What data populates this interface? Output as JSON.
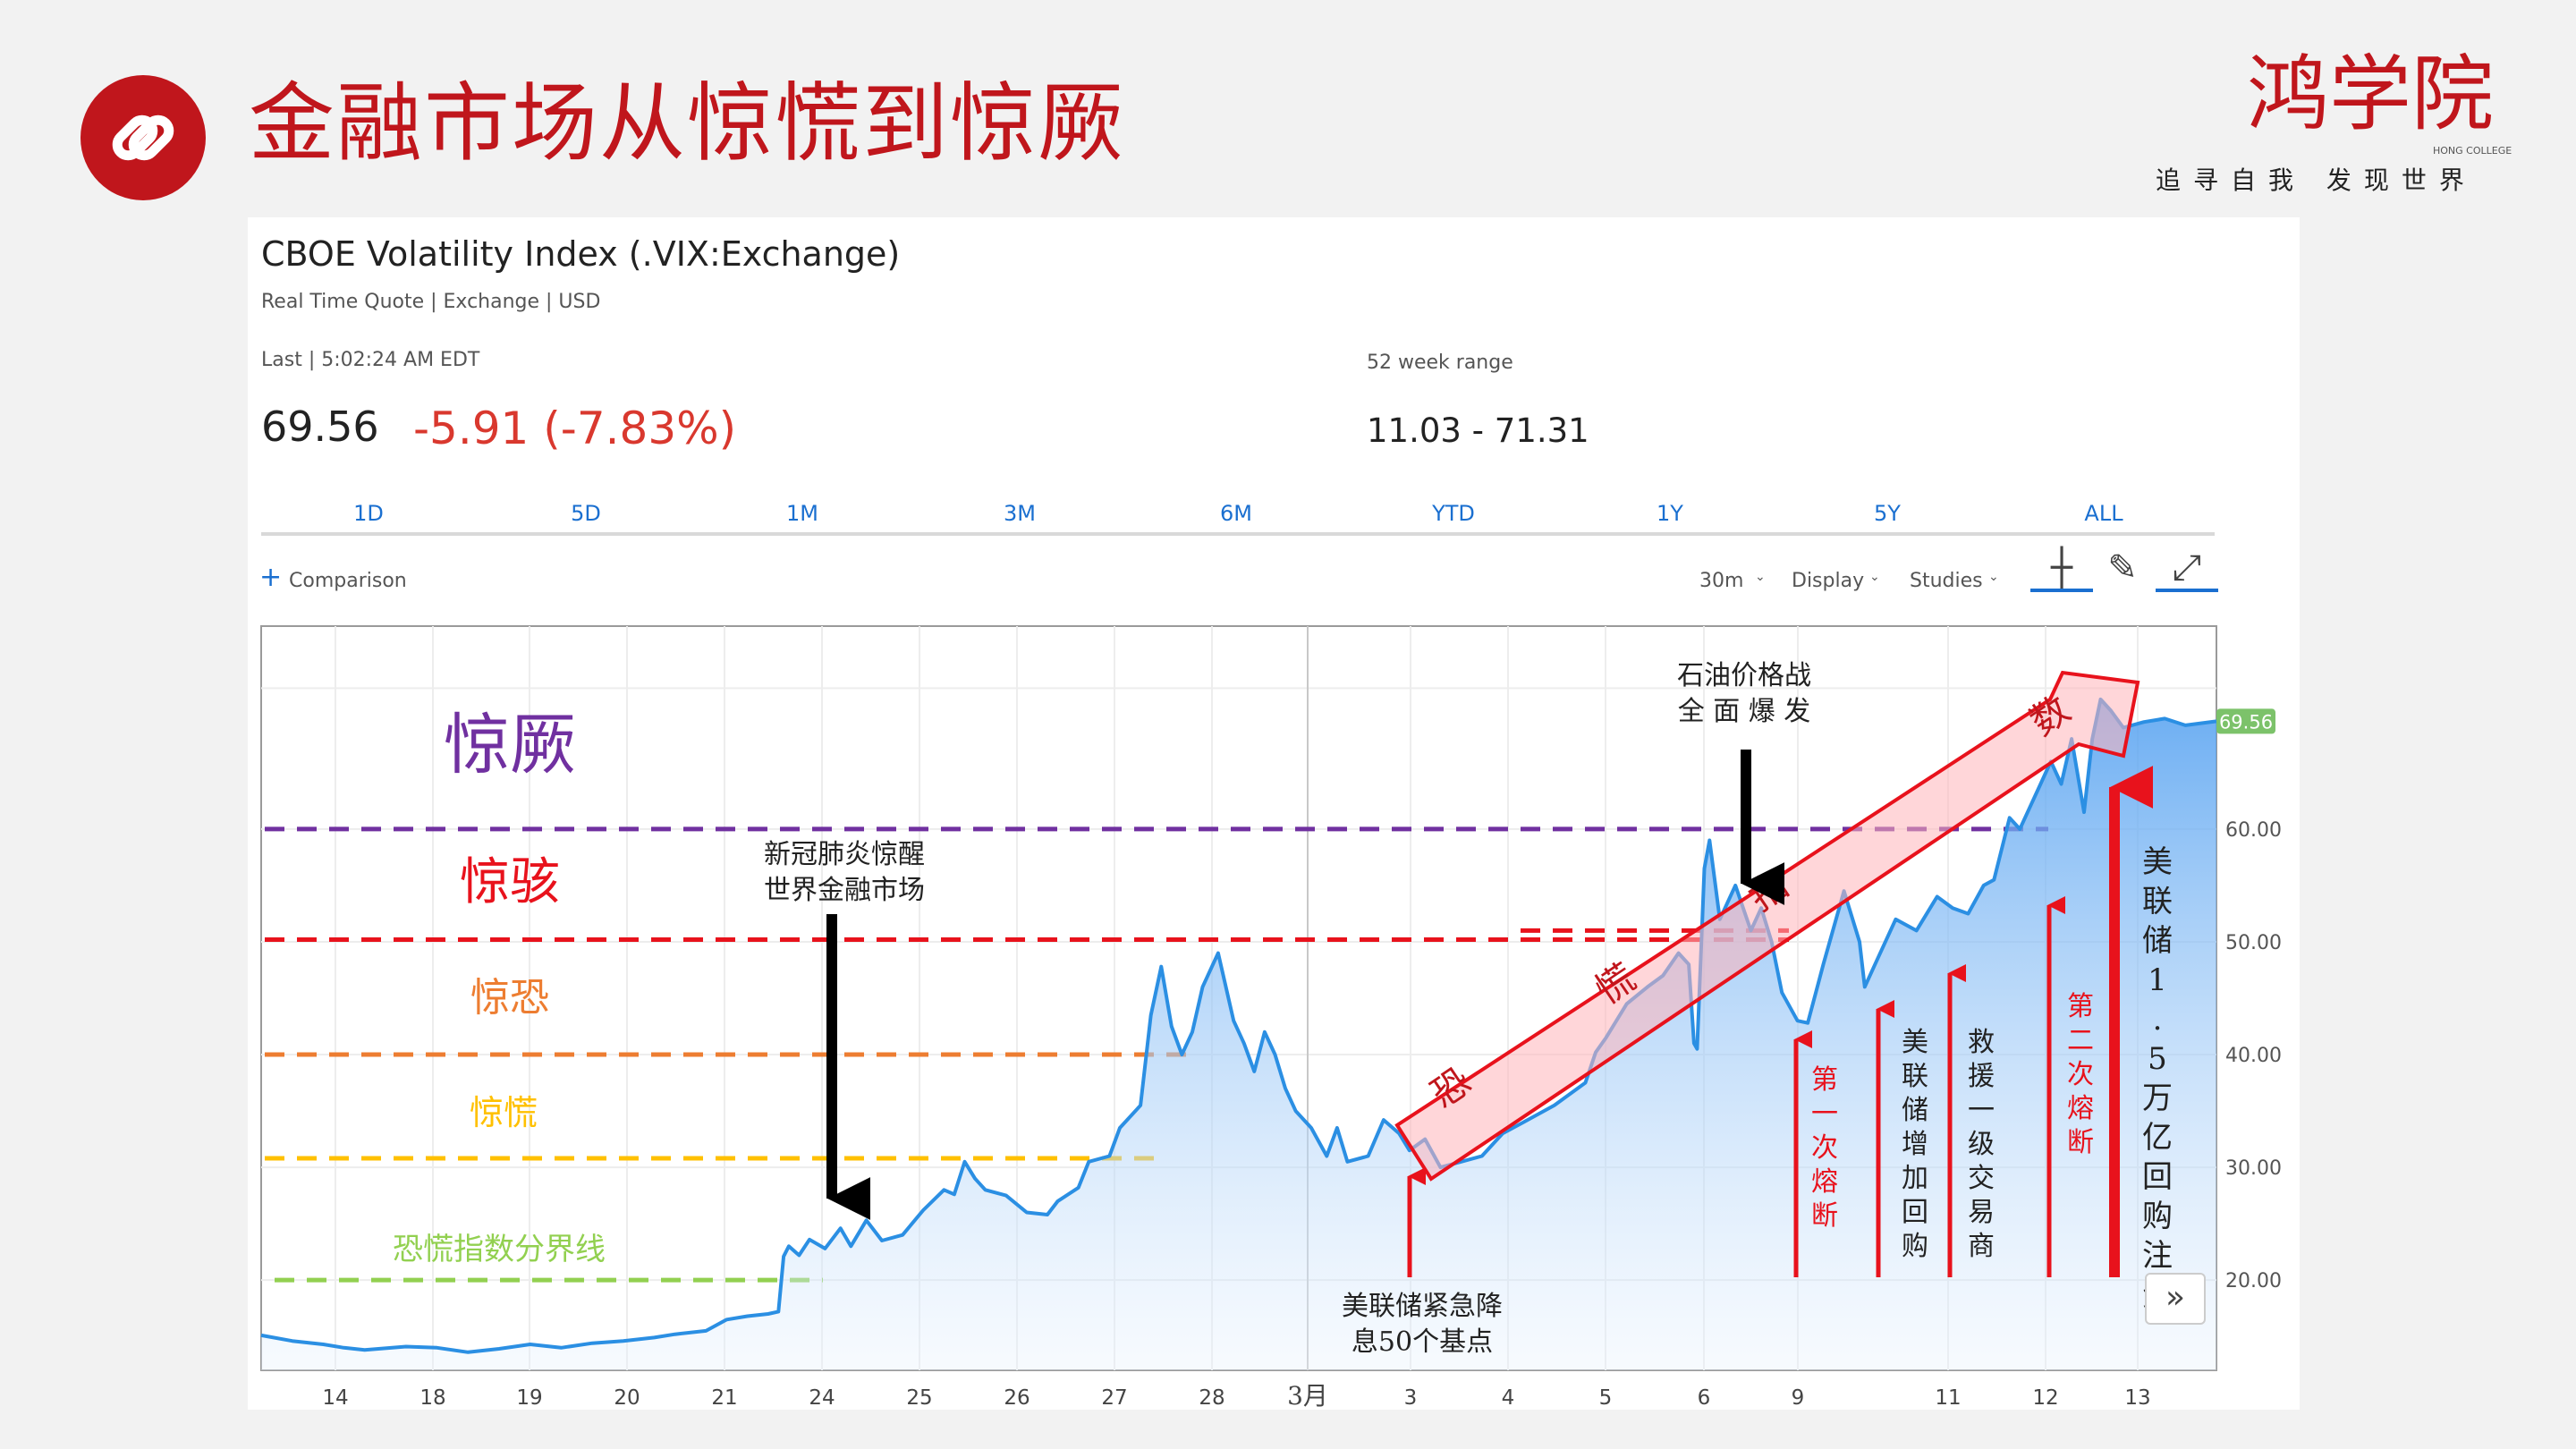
{
  "slide": {
    "title": "金融市场从惊慌到惊厥",
    "logo_text": "鸿学院",
    "logo_en": "HONG COLLEGE",
    "logo_slogan": "追寻自我 发现世界",
    "accent": "#c0161c"
  },
  "quote": {
    "title": "CBOE Volatility Index (.VIX:Exchange)",
    "subtitle": "Real Time Quote | Exchange | USD",
    "last_label": "Last | 5:02:24 AM EDT",
    "last_value": "69.56",
    "change": "-5.91 (-7.83%)",
    "range_label": "52 week range",
    "range_value": "11.03 - 71.31"
  },
  "tabs": [
    "1D",
    "5D",
    "1M",
    "3M",
    "6M",
    "YTD",
    "1Y",
    "5Y",
    "ALL"
  ],
  "toolbar": {
    "comparison": "Comparison",
    "interval": "30m",
    "display": "Display",
    "studies": "Studies"
  },
  "icons": [
    "link-icon",
    "plus-icon",
    "crosshair-icon",
    "pencil-icon",
    "expand-icon",
    "double-chevron-right-icon"
  ],
  "chart_data": {
    "type": "area",
    "title": "CBOE Volatility Index (.VIX:Exchange)",
    "xlabel": "",
    "ylabel": "",
    "ylim": [
      12,
      78
    ],
    "x_ticks": [
      "14",
      "18",
      "19",
      "20",
      "21",
      "24",
      "25",
      "26",
      "27",
      "28",
      "3月",
      "3",
      "4",
      "5",
      "6",
      "9",
      "11",
      "12",
      "13"
    ],
    "y_ticks": [
      "20.00",
      "30.00",
      "40.00",
      "50.00",
      "60.00"
    ],
    "last_price_tag": "69.56",
    "series": [
      {
        "name": "VIX",
        "color": "#2b8fe3",
        "points": [
          [
            0,
            15.1
          ],
          [
            0.3,
            14.6
          ],
          [
            0.6,
            14.3
          ],
          [
            0.8,
            14.0
          ],
          [
            1.0,
            13.8
          ],
          [
            1.4,
            14.1
          ],
          [
            1.7,
            14.0
          ],
          [
            2.0,
            13.6
          ],
          [
            2.3,
            13.9
          ],
          [
            2.6,
            14.3
          ],
          [
            2.9,
            14.0
          ],
          [
            3.2,
            14.4
          ],
          [
            3.5,
            14.6
          ],
          [
            3.8,
            14.9
          ],
          [
            4.0,
            15.2
          ],
          [
            4.3,
            15.5
          ],
          [
            4.5,
            16.5
          ],
          [
            4.7,
            16.8
          ],
          [
            4.9,
            17.0
          ],
          [
            5.0,
            17.2
          ],
          [
            5.05,
            22.1
          ],
          [
            5.1,
            23.0
          ],
          [
            5.2,
            22.2
          ],
          [
            5.3,
            23.6
          ],
          [
            5.45,
            22.8
          ],
          [
            5.6,
            24.6
          ],
          [
            5.7,
            23.0
          ],
          [
            5.85,
            25.3
          ],
          [
            6.0,
            23.5
          ],
          [
            6.2,
            24.0
          ],
          [
            6.4,
            26.2
          ],
          [
            6.6,
            28.0
          ],
          [
            6.7,
            27.6
          ],
          [
            6.8,
            30.5
          ],
          [
            6.9,
            29.0
          ],
          [
            7.0,
            28.0
          ],
          [
            7.2,
            27.5
          ],
          [
            7.4,
            26.0
          ],
          [
            7.6,
            25.8
          ],
          [
            7.7,
            27.0
          ],
          [
            7.9,
            28.2
          ],
          [
            8.0,
            30.5
          ],
          [
            8.2,
            31.0
          ],
          [
            8.3,
            33.5
          ],
          [
            8.5,
            35.5
          ],
          [
            8.6,
            43.5
          ],
          [
            8.7,
            47.8
          ],
          [
            8.8,
            42.5
          ],
          [
            8.9,
            40.0
          ],
          [
            9.0,
            42.0
          ],
          [
            9.1,
            46.0
          ],
          [
            9.25,
            49.0
          ],
          [
            9.4,
            43.0
          ],
          [
            9.5,
            41.0
          ],
          [
            9.6,
            38.5
          ],
          [
            9.7,
            42.0
          ],
          [
            9.8,
            40.0
          ],
          [
            9.9,
            37.0
          ],
          [
            10.0,
            35.0
          ],
          [
            10.15,
            33.5
          ],
          [
            10.3,
            31.0
          ],
          [
            10.4,
            33.5
          ],
          [
            10.5,
            30.5
          ],
          [
            10.7,
            31.0
          ],
          [
            10.85,
            34.2
          ],
          [
            11.0,
            33.0
          ],
          [
            11.1,
            31.5
          ],
          [
            11.25,
            32.5
          ],
          [
            11.4,
            30.0
          ],
          [
            11.6,
            30.5
          ],
          [
            11.8,
            31.0
          ],
          [
            12.0,
            33.0
          ],
          [
            12.2,
            34.0
          ],
          [
            12.5,
            35.5
          ],
          [
            12.8,
            37.5
          ],
          [
            12.9,
            40.2
          ],
          [
            13.0,
            41.5
          ],
          [
            13.2,
            44.5
          ],
          [
            13.4,
            46.0
          ],
          [
            13.55,
            47.0
          ],
          [
            13.7,
            49.0
          ],
          [
            13.8,
            48.0
          ],
          [
            13.85,
            41.0
          ],
          [
            13.88,
            40.5
          ],
          [
            13.95,
            56.5
          ],
          [
            14.0,
            59.0
          ],
          [
            14.1,
            52.0
          ],
          [
            14.25,
            55.0
          ],
          [
            14.4,
            51.0
          ],
          [
            14.5,
            53.0
          ],
          [
            14.6,
            50.0
          ],
          [
            14.7,
            45.5
          ],
          [
            14.85,
            43.0
          ],
          [
            14.95,
            42.8
          ],
          [
            15.1,
            48.0
          ],
          [
            15.3,
            54.5
          ],
          [
            15.45,
            50.0
          ],
          [
            15.5,
            46.0
          ],
          [
            15.6,
            48.0
          ],
          [
            15.8,
            52.0
          ],
          [
            16.0,
            51.0
          ],
          [
            16.2,
            54.0
          ],
          [
            16.35,
            53.0
          ],
          [
            16.5,
            52.5
          ],
          [
            16.65,
            55.0
          ],
          [
            16.75,
            55.5
          ],
          [
            16.9,
            61.0
          ],
          [
            17.0,
            60.0
          ],
          [
            17.1,
            62.0
          ],
          [
            17.2,
            64.0
          ],
          [
            17.3,
            66.0
          ],
          [
            17.4,
            64.0
          ],
          [
            17.5,
            68.0
          ],
          [
            17.62,
            61.5
          ],
          [
            17.7,
            68.0
          ],
          [
            17.78,
            71.5
          ],
          [
            17.88,
            70.5
          ],
          [
            18.0,
            69.0
          ],
          [
            18.2,
            69.5
          ],
          [
            18.4,
            69.8
          ],
          [
            18.6,
            69.2
          ],
          [
            18.9,
            69.56
          ]
        ]
      }
    ]
  },
  "annotations": {
    "zone_labels": [
      "惊厥",
      "惊骇",
      "惊恐",
      "惊慌",
      "恐慌指数分界线"
    ],
    "zone_levels": [
      60.0,
      50.2,
      40.0,
      30.8,
      20.0
    ],
    "events": {
      "covid": "新冠肺炎惊醒\n世界金融市场",
      "oil": "石油价格战\n全 面 爆 发",
      "fed_cut": "美联储紧急降\n息50个基点",
      "breaker1": "第一次熔断",
      "repo": "美联储增加回购",
      "dealers": "救援一级交易商",
      "breaker2": "第二次熔断",
      "qe": "美联储1.5万亿回购注资"
    },
    "arrow_chars": [
      "恐",
      "慌",
      "指",
      "数"
    ]
  }
}
